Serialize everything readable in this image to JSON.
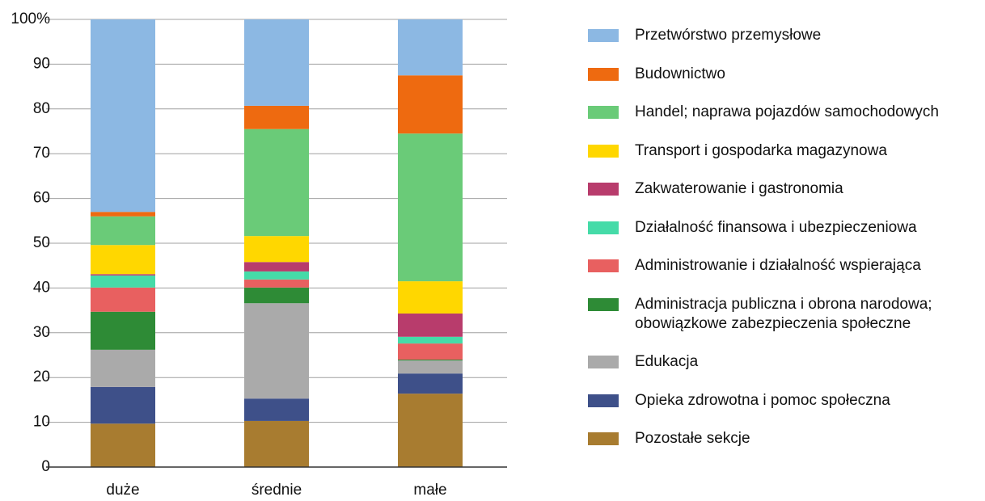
{
  "chart_data": {
    "type": "stacked_bar",
    "categories": [
      "duże",
      "średnie",
      "małe"
    ],
    "ylim": [
      0,
      100
    ],
    "yticks": [
      0,
      10,
      20,
      30,
      40,
      50,
      60,
      70,
      80,
      90,
      {
        "value": 100,
        "label": "100%"
      }
    ],
    "grid": true,
    "series": [
      {
        "name": "Przetwórstwo przemysłowe",
        "color": "#8cb8e3",
        "values": [
          43.0,
          19.3,
          12.5
        ]
      },
      {
        "name": "Budownictwo",
        "color": "#ee6a10",
        "values": [
          1.0,
          5.2,
          13.0
        ]
      },
      {
        "name": "Handel; naprawa pojazdów samochodowych",
        "color": "#6acb78",
        "values": [
          6.4,
          23.9,
          33.0
        ]
      },
      {
        "name": "Transport i gospodarka magazynowa",
        "color": "#ffd700",
        "values": [
          6.5,
          5.8,
          7.2
        ]
      },
      {
        "name": "Zakwaterowanie i gastronomia",
        "color": "#b83c6c",
        "values": [
          0.3,
          2.1,
          5.2
        ]
      },
      {
        "name": "Działalność finansowa i ubezpieczeniowa",
        "color": "#45dba8",
        "values": [
          2.7,
          1.8,
          1.5
        ]
      },
      {
        "name": "Administrowanie i działalność wspierająca",
        "color": "#e86060",
        "values": [
          5.4,
          1.8,
          3.6
        ]
      },
      {
        "name": "Administracja publiczna i obrona narodowa; obowiązkowe zabezpieczenia społeczne",
        "color": "#2e8b36",
        "values": [
          8.5,
          3.5,
          0.2
        ]
      },
      {
        "name": "Edukacja",
        "color": "#aaaaaa",
        "values": [
          8.3,
          21.3,
          2.9
        ]
      },
      {
        "name": "Opieka zdrowotna i pomoc społeczna",
        "color": "#3e5089",
        "values": [
          8.2,
          5.0,
          4.5
        ]
      },
      {
        "name": "Pozostałe sekcje",
        "color": "#a87c30",
        "values": [
          9.7,
          10.3,
          16.4
        ]
      }
    ]
  }
}
